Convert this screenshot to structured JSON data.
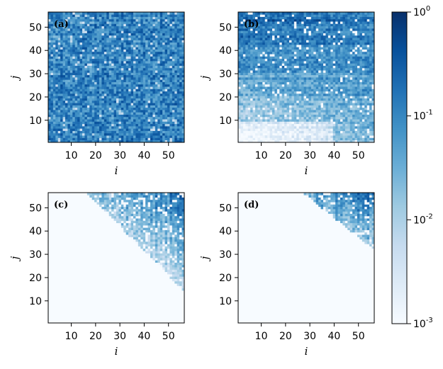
{
  "chart_data": {
    "type": "heatmap",
    "grid_size": 56,
    "x_tick_labels": [
      "10",
      "20",
      "30",
      "40",
      "50"
    ],
    "x_ticks": [
      10,
      20,
      30,
      40,
      50
    ],
    "y_tick_labels": [
      "10",
      "20",
      "30",
      "40",
      "50"
    ],
    "y_ticks": [
      10,
      20,
      30,
      40,
      50
    ],
    "xlabel": "i",
    "ylabel": "j",
    "xlim": [
      0.5,
      56.5
    ],
    "ylim": [
      0.5,
      56.5
    ],
    "panels": [
      {
        "label": "(a)",
        "pattern": "uniform_dense"
      },
      {
        "label": "(b)",
        "pattern": "gradient_top_left_dense"
      },
      {
        "label": "(c)",
        "pattern": "upper_right_triangle"
      },
      {
        "label": "(d)",
        "pattern": "upper_right_corner"
      }
    ],
    "colorbar": {
      "scale": "log",
      "min": 0.001,
      "max": 1,
      "ticks": [
        {
          "base": "10",
          "exp": "0",
          "value": 1
        },
        {
          "base": "10",
          "exp": "-1",
          "value": 0.1
        },
        {
          "base": "10",
          "exp": "-2",
          "value": 0.01
        },
        {
          "base": "10",
          "exp": "-3",
          "value": 0.001
        }
      ]
    },
    "colormap": [
      "#f7fbff",
      "#deebf7",
      "#c6dbef",
      "#9ecae1",
      "#6baed6",
      "#4292c6",
      "#2171b5",
      "#08519c",
      "#08306b"
    ]
  }
}
